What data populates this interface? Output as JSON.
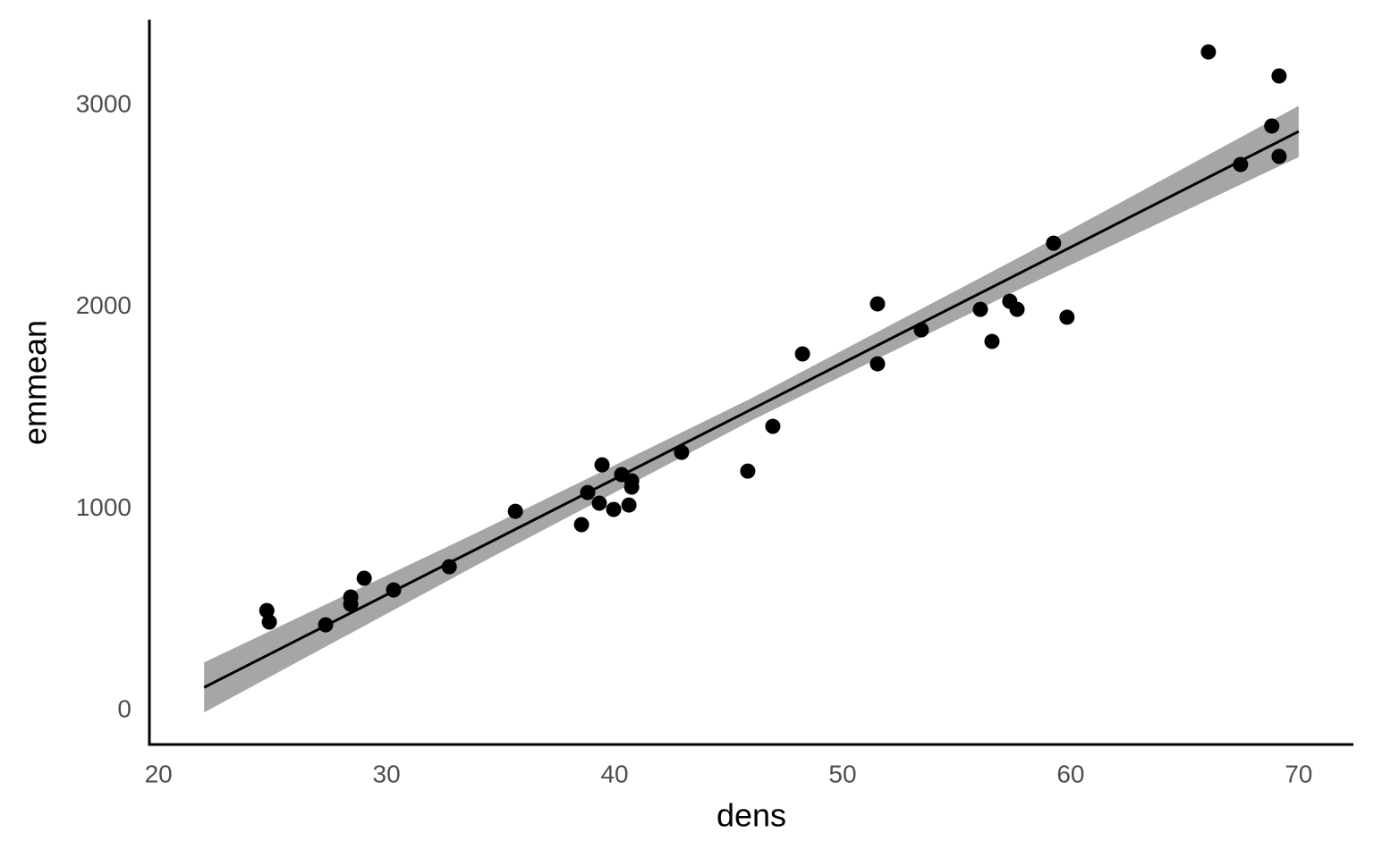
{
  "chart_data": {
    "type": "scatter",
    "x_label": "dens",
    "y_label": "emmean",
    "xlim": [
      19.6,
      72.4
    ],
    "ylim": [
      -168,
      3425
    ],
    "xticks": [
      20,
      30,
      40,
      50,
      60,
      70
    ],
    "yticks": [
      0,
      1000,
      2000,
      3000
    ],
    "grid": false,
    "series": [
      {
        "color": "#000000",
        "x": [
          24.75,
          24.86,
          27.33,
          28.43,
          28.43,
          29.02,
          30.31,
          32.75,
          35.65,
          38.55,
          38.82,
          39.33,
          39.45,
          39.96,
          40.31,
          40.63,
          40.75,
          40.75,
          42.94,
          45.84,
          46.94,
          48.24,
          51.53,
          51.53,
          53.45,
          56.04,
          56.55,
          57.33,
          57.65,
          59.25,
          59.84,
          66.04,
          67.45,
          68.82,
          69.14,
          69.14
        ],
        "values": [
          496,
          439,
          425,
          563,
          527,
          656,
          598,
          713,
          988,
          922,
          1081,
          1028,
          1218,
          997,
          1170,
          1019,
          1139,
          1108,
          1280,
          1187,
          1409,
          1768,
          1719,
          2016,
          1887,
          1989,
          1830,
          2029,
          1989,
          2317,
          1950,
          3265,
          2707,
          2898,
          3146,
          2747
        ]
      }
    ],
    "fit": {
      "color": "#000000",
      "x": [
        22,
        34,
        46,
        58,
        70
      ],
      "values": [
        115,
        804,
        1493,
        2182,
        2871
      ]
    },
    "band": {
      "color": "#a6a6a6",
      "x": [
        22,
        34,
        46,
        58,
        70
      ],
      "lower": [
        -9,
        724,
        1438,
        2102,
        2744
      ],
      "upper": [
        239,
        884,
        1548,
        2262,
        2998
      ]
    }
  }
}
